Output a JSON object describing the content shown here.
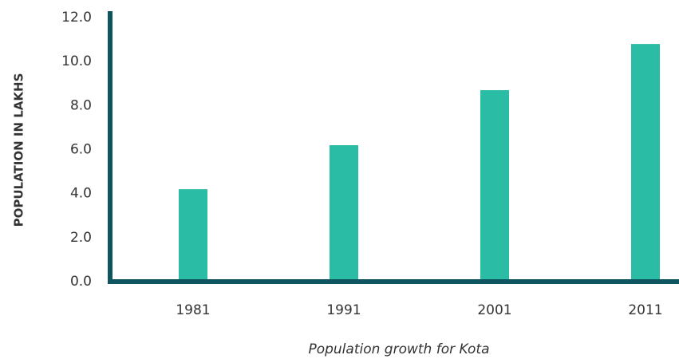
{
  "chart_data": {
    "type": "bar",
    "xlabel": "Population growth for Kota",
    "ylabel": "POPULATION IN LAKHS",
    "categories": [
      "1981",
      "1991",
      "2001",
      "2011"
    ],
    "values": [
      4.2,
      6.2,
      8.7,
      10.8
    ],
    "color": "#2bbca5",
    "axis_color": "#0f5560",
    "ylim": [
      0,
      12
    ],
    "yticks": [
      {
        "value": 0,
        "label": "0.0"
      },
      {
        "value": 2,
        "label": "2.0"
      },
      {
        "value": 4,
        "label": "4.0"
      },
      {
        "value": 6,
        "label": "6.0"
      },
      {
        "value": 8,
        "label": "8.0"
      },
      {
        "value": 10,
        "label": "10.0"
      },
      {
        "value": 12,
        "label": "12.0"
      }
    ],
    "grid": false
  }
}
